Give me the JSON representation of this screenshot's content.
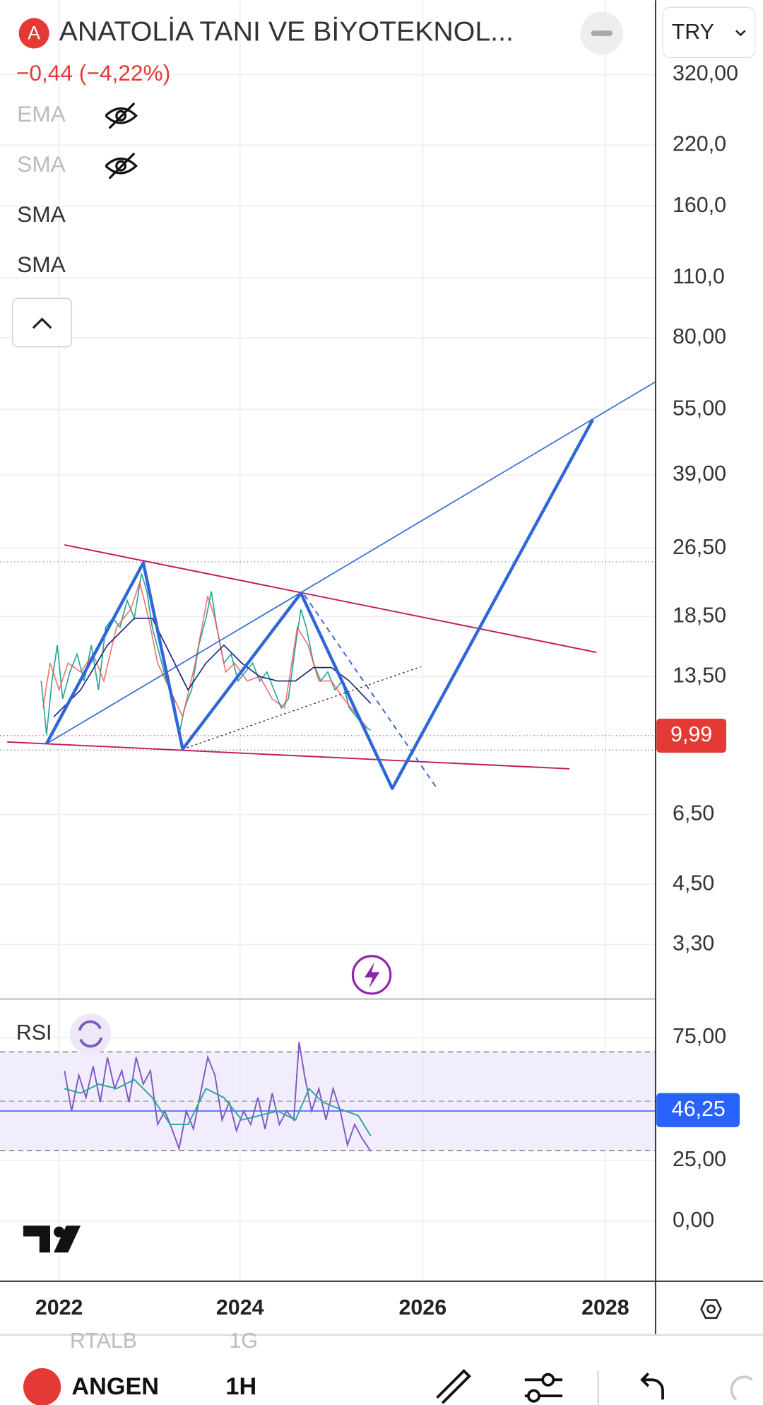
{
  "header": {
    "badge": "A",
    "title": "ANATOLİA TANI VE BİYOTEKNOL...",
    "change": "−0,44 (−4,22%)",
    "currency": "TRY"
  },
  "indicators": [
    "EMA",
    "SMA",
    "SMA",
    "SMA"
  ],
  "price_axis": [
    "320,00",
    "220,0",
    "160,0",
    "110,0",
    "80,00",
    "55,00",
    "39,00",
    "26,50",
    "18,50",
    "13,50",
    "6,50",
    "4,50",
    "3,30"
  ],
  "last_price": "9,99",
  "rsi": {
    "label": "RSI",
    "axis": [
      "75,00",
      "25,00",
      "0,00"
    ],
    "value": "46,25"
  },
  "time_axis": [
    "2022",
    "2024",
    "2026",
    "2028"
  ],
  "bottom": {
    "peek": [
      "RTALB",
      "1G"
    ],
    "symbol": "ANGEN",
    "interval": "1H"
  }
}
